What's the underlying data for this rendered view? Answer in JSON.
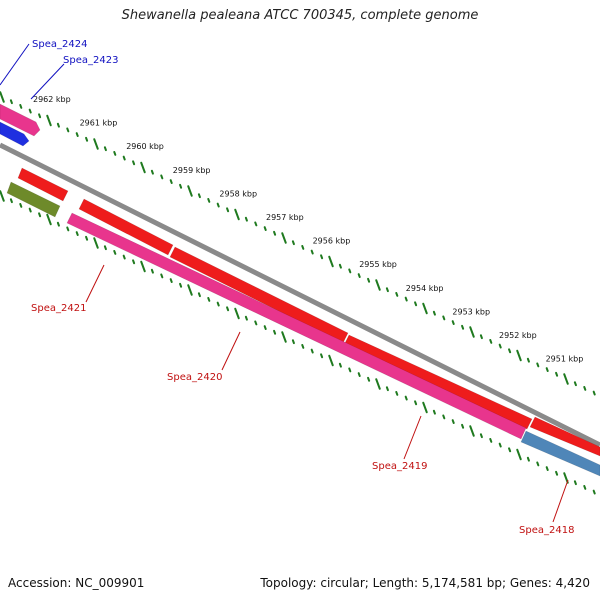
{
  "title": "Shewanella pealeana ATCC 700345, complete genome",
  "footer": {
    "accession": "Accession: NC_009901",
    "summary": "Topology: circular; Length: 5,174,581 bp; Genes: 4,420"
  },
  "colors": {
    "backbone": "#8a8a8a",
    "tick": "#1f7a1f",
    "label_top": "#1010c0",
    "label_bottom": "#c01010",
    "gene_red": "#ee1c1c",
    "gene_pink": "#e8358d",
    "gene_blue": "#1f2fe0",
    "gene_olive": "#6e8a2a",
    "gene_steel": "#4f86b8"
  },
  "kbp_labels": [
    "2962 kbp",
    "2961 kbp",
    "2960 kbp",
    "2959 kbp",
    "2958 kbp",
    "2957 kbp",
    "2956 kbp",
    "2955 kbp",
    "2954 kbp",
    "2953 kbp",
    "2952 kbp",
    "2951 kbp"
  ],
  "gene_labels": {
    "top": [
      "Spea_2424",
      "Spea_2423"
    ],
    "bottom": [
      "Spea_2421",
      "Spea_2420",
      "Spea_2419",
      "Spea_2418"
    ]
  }
}
